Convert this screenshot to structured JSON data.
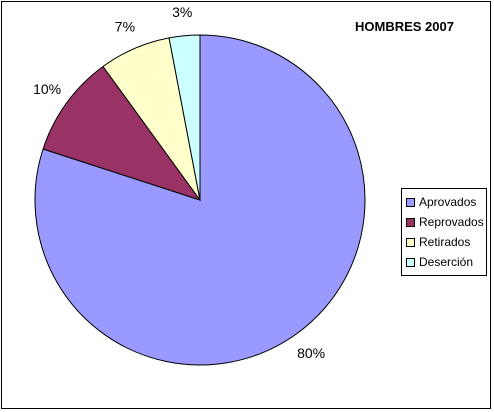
{
  "chart_data": {
    "type": "pie",
    "title": "HOMBRES 2007",
    "categories": [
      "Aprovados",
      "Reprovados",
      "Retirados",
      "Deserción"
    ],
    "values": [
      80,
      10,
      7,
      3
    ],
    "labels": [
      "80%",
      "10%",
      "7%",
      "3%"
    ],
    "colors": [
      "#9999ff",
      "#993366",
      "#ffffcc",
      "#ccffff"
    ],
    "legend_position": "right",
    "start_angle_deg": 0,
    "direction": "clockwise"
  }
}
